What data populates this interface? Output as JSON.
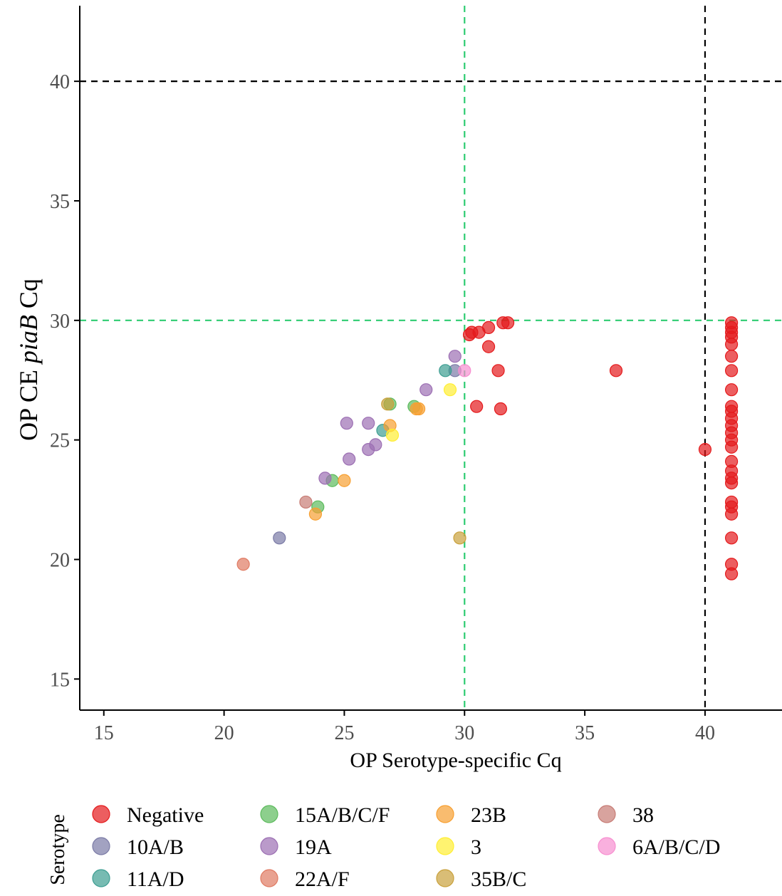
{
  "chart_data": {
    "type": "scatter",
    "xlabel": "OP Serotype-specific Cq",
    "ylabel_prefix": "OP CE ",
    "ylabel_italic": "piaB",
    "ylabel_suffix": " Cq",
    "xlim": [
      14,
      43.2
    ],
    "ylim": [
      13.7,
      43.4
    ],
    "xticks": [
      15,
      20,
      25,
      30,
      35,
      40
    ],
    "yticks": [
      15,
      20,
      25,
      30,
      35,
      40
    ],
    "grid": false,
    "reference_lines": [
      {
        "axis": "x",
        "value": 30,
        "color": "#2ecc71"
      },
      {
        "axis": "y",
        "value": 30,
        "color": "#2ecc71"
      },
      {
        "axis": "x",
        "value": 40,
        "color": "#000000"
      },
      {
        "axis": "y",
        "value": 40,
        "color": "#000000"
      }
    ],
    "legend_title": "Serotype",
    "legend_position": "bottom",
    "series": [
      {
        "name": "Negative",
        "color": "#e41a1c",
        "points": [
          [
            30.2,
            29.4
          ],
          [
            30.3,
            29.5
          ],
          [
            30.6,
            29.5
          ],
          [
            31.0,
            29.7
          ],
          [
            31.6,
            29.9
          ],
          [
            31.8,
            29.9
          ],
          [
            31.0,
            28.9
          ],
          [
            31.4,
            27.9
          ],
          [
            36.3,
            27.9
          ],
          [
            30.5,
            26.4
          ],
          [
            31.5,
            26.3
          ],
          [
            40.0,
            24.6
          ],
          [
            41.1,
            29.9
          ],
          [
            41.1,
            29.7
          ],
          [
            41.1,
            29.5
          ],
          [
            41.1,
            29.3
          ],
          [
            41.1,
            29.0
          ],
          [
            41.1,
            28.5
          ],
          [
            41.1,
            27.9
          ],
          [
            41.1,
            27.1
          ],
          [
            41.1,
            26.4
          ],
          [
            41.1,
            26.2
          ],
          [
            41.1,
            25.9
          ],
          [
            41.1,
            25.6
          ],
          [
            41.1,
            25.3
          ],
          [
            41.1,
            25.0
          ],
          [
            41.1,
            24.7
          ],
          [
            41.1,
            24.1
          ],
          [
            41.1,
            23.7
          ],
          [
            41.1,
            23.4
          ],
          [
            41.1,
            23.2
          ],
          [
            41.1,
            22.4
          ],
          [
            41.1,
            22.2
          ],
          [
            41.1,
            21.9
          ],
          [
            41.1,
            20.9
          ],
          [
            41.1,
            19.8
          ],
          [
            41.1,
            19.4
          ]
        ]
      },
      {
        "name": "10A/B",
        "color": "#7b7ba6",
        "points": [
          [
            22.3,
            20.9
          ],
          [
            29.6,
            27.9
          ]
        ]
      },
      {
        "name": "11A/D",
        "color": "#3d9e92",
        "points": [
          [
            26.6,
            25.4
          ],
          [
            29.2,
            27.9
          ]
        ]
      },
      {
        "name": "15A/B/C/F",
        "color": "#5dbb5d",
        "points": [
          [
            24.5,
            23.3
          ],
          [
            23.9,
            22.2
          ],
          [
            26.9,
            26.5
          ],
          [
            27.9,
            26.4
          ]
        ]
      },
      {
        "name": "19A",
        "color": "#9c6fb3",
        "points": [
          [
            24.2,
            23.4
          ],
          [
            25.1,
            25.7
          ],
          [
            25.2,
            24.2
          ],
          [
            26.0,
            25.7
          ],
          [
            26.0,
            24.6
          ],
          [
            26.3,
            24.8
          ],
          [
            28.4,
            27.1
          ],
          [
            29.6,
            28.5
          ]
        ]
      },
      {
        "name": "22A/F",
        "color": "#e07a62",
        "points": [
          [
            20.8,
            19.8
          ]
        ]
      },
      {
        "name": "23B",
        "color": "#f7a032",
        "points": [
          [
            23.8,
            21.9
          ],
          [
            25.0,
            23.3
          ],
          [
            26.9,
            25.6
          ],
          [
            28.0,
            26.3
          ],
          [
            28.1,
            26.3
          ]
        ]
      },
      {
        "name": "3",
        "color": "#ffee33",
        "points": [
          [
            27.0,
            25.2
          ],
          [
            29.4,
            27.1
          ]
        ]
      },
      {
        "name": "35B/C",
        "color": "#c9a13c",
        "points": [
          [
            26.8,
            26.5
          ],
          [
            29.8,
            20.9
          ]
        ]
      },
      {
        "name": "38",
        "color": "#c77c75",
        "points": [
          [
            23.4,
            22.4
          ]
        ]
      },
      {
        "name": "6A/B/C/D",
        "color": "#f78fd0",
        "points": [
          [
            30.0,
            27.9
          ]
        ]
      }
    ]
  }
}
